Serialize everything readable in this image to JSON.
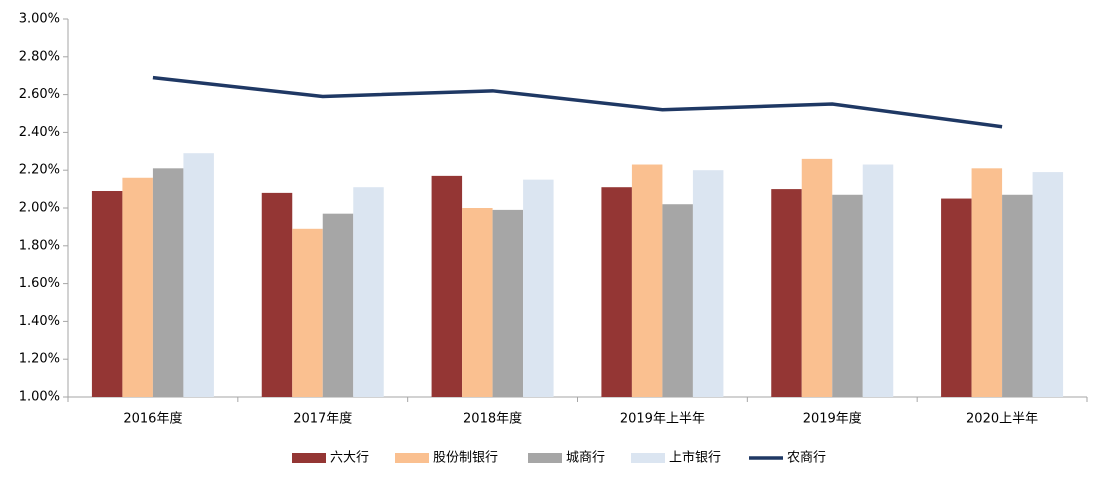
{
  "chart_data": {
    "type": "bar-line",
    "categories": [
      "2016年度",
      "2017年度",
      "2018年度",
      "2019年上半年",
      "2019年度",
      "2020上半年"
    ],
    "series": [
      {
        "name": "六大行",
        "type": "bar",
        "color": "#943634",
        "values": [
          2.09,
          2.08,
          2.17,
          2.11,
          2.1,
          2.05
        ]
      },
      {
        "name": "股份制银行",
        "type": "bar",
        "color": "#fac090",
        "values": [
          2.16,
          1.89,
          2.0,
          2.23,
          2.26,
          2.21
        ]
      },
      {
        "name": "城商行",
        "type": "bar",
        "color": "#a6a6a6",
        "values": [
          2.21,
          1.97,
          1.99,
          2.02,
          2.07,
          2.07
        ]
      },
      {
        "name": "上市银行",
        "type": "bar",
        "color": "#dbe5f1",
        "values": [
          2.29,
          2.11,
          2.15,
          2.2,
          2.23,
          2.19
        ]
      },
      {
        "name": "农商行",
        "type": "line",
        "color": "#1f3864",
        "values": [
          2.69,
          2.59,
          2.62,
          2.52,
          2.55,
          2.43
        ]
      }
    ],
    "ylim": [
      1.0,
      3.0
    ],
    "yticks": [
      {
        "value": 1.0,
        "label": "1.00%"
      },
      {
        "value": 1.2,
        "label": "1.20%"
      },
      {
        "value": 1.4,
        "label": "1.40%"
      },
      {
        "value": 1.6,
        "label": "1.60%"
      },
      {
        "value": 1.8,
        "label": "1.80%"
      },
      {
        "value": 2.0,
        "label": "2.00%"
      },
      {
        "value": 2.2,
        "label": "2.20%"
      },
      {
        "value": 2.4,
        "label": "2.40%"
      },
      {
        "value": 2.6,
        "label": "2.60%"
      },
      {
        "value": 2.8,
        "label": "2.80%"
      },
      {
        "value": 3.0,
        "label": "3.00%"
      }
    ],
    "grid": false,
    "legend": "bottom"
  }
}
